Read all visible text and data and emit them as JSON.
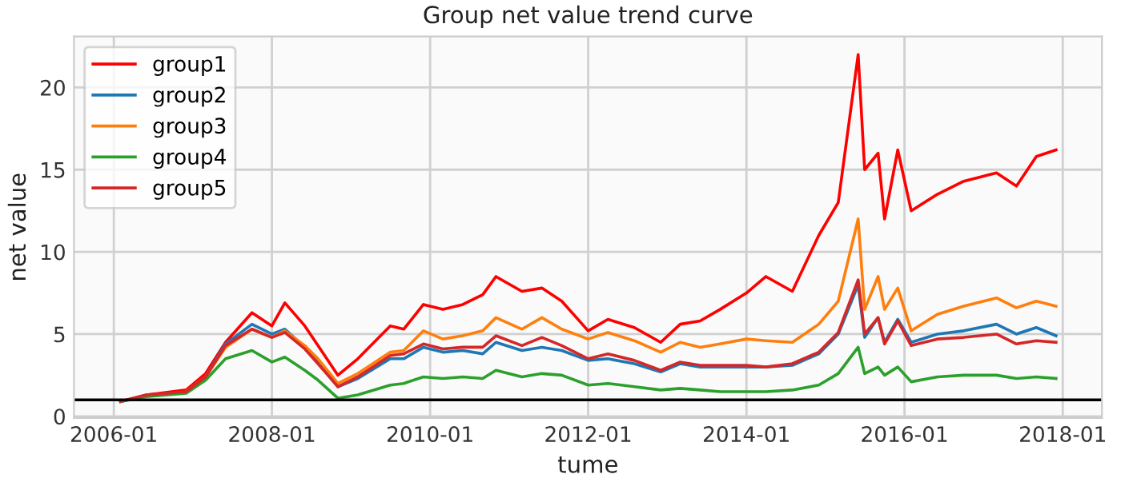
{
  "chart_data": {
    "type": "line",
    "title": "Group net value trend curve",
    "xlabel": "tume",
    "ylabel": "net value",
    "x": [
      "2006-02",
      "2006-06",
      "2006-12",
      "2007-03",
      "2007-06",
      "2007-10",
      "2008-01",
      "2008-03",
      "2008-06",
      "2008-08",
      "2008-11",
      "2009-02",
      "2009-07",
      "2009-09",
      "2009-12",
      "2010-03",
      "2010-06",
      "2010-09",
      "2010-11",
      "2011-03",
      "2011-06",
      "2011-09",
      "2012-01",
      "2012-04",
      "2012-08",
      "2012-12",
      "2013-03",
      "2013-06",
      "2013-09",
      "2014-01",
      "2014-04",
      "2014-08",
      "2014-12",
      "2015-03",
      "2015-06",
      "2015-07",
      "2015-09",
      "2015-10",
      "2015-12",
      "2016-02",
      "2016-06",
      "2016-10",
      "2017-03",
      "2017-06",
      "2017-09",
      "2017-12"
    ],
    "series": [
      {
        "name": "group1",
        "color": "#ff0000",
        "values": [
          0.9,
          1.3,
          1.6,
          2.6,
          4.5,
          6.3,
          5.5,
          6.9,
          5.5,
          4.3,
          2.5,
          3.5,
          5.5,
          5.3,
          6.8,
          6.5,
          6.8,
          7.4,
          8.5,
          7.6,
          7.8,
          7.0,
          5.2,
          5.9,
          5.4,
          4.5,
          5.6,
          5.8,
          6.5,
          7.5,
          8.5,
          7.6,
          11,
          13,
          22,
          15,
          16,
          12,
          16.2,
          12.5,
          13.5,
          14.3,
          14.8,
          14.0,
          15.8,
          16.2
        ]
      },
      {
        "name": "group2",
        "color": "#1f77b4",
        "values": [
          null,
          null,
          null,
          2.4,
          4.4,
          5.6,
          5.0,
          5.3,
          4.2,
          3.3,
          1.8,
          2.3,
          3.5,
          3.5,
          4.2,
          3.9,
          4.0,
          3.8,
          4.5,
          4.0,
          4.2,
          4.0,
          3.4,
          3.5,
          3.2,
          2.7,
          3.2,
          3.0,
          3.0,
          3.0,
          3.0,
          3.1,
          3.8,
          5.0,
          8.0,
          4.8,
          6.0,
          4.5,
          5.9,
          4.5,
          5.0,
          5.2,
          5.6,
          5.0,
          5.4,
          4.9
        ]
      },
      {
        "name": "group3",
        "color": "#ff7f0e",
        "values": [
          null,
          null,
          1.5,
          2.4,
          4.2,
          5.3,
          4.8,
          5.2,
          4.3,
          3.5,
          2.0,
          2.6,
          3.9,
          4.0,
          5.2,
          4.7,
          4.9,
          5.2,
          6.0,
          5.3,
          6.0,
          5.3,
          4.7,
          5.1,
          4.6,
          3.9,
          4.5,
          4.2,
          4.4,
          4.7,
          4.6,
          4.5,
          5.6,
          7.0,
          12,
          6.5,
          8.5,
          6.5,
          7.8,
          5.2,
          6.2,
          6.7,
          7.2,
          6.6,
          7.0,
          6.7
        ]
      },
      {
        "name": "group4",
        "color": "#2ca02c",
        "values": [
          0.9,
          1.2,
          1.4,
          2.2,
          3.5,
          4.0,
          3.3,
          3.6,
          2.8,
          2.2,
          1.1,
          1.3,
          1.9,
          2.0,
          2.4,
          2.3,
          2.4,
          2.3,
          2.8,
          2.4,
          2.6,
          2.5,
          1.9,
          2.0,
          1.8,
          1.6,
          1.7,
          1.6,
          1.5,
          1.5,
          1.5,
          1.6,
          1.9,
          2.6,
          4.2,
          2.6,
          3.0,
          2.5,
          3.0,
          2.1,
          2.4,
          2.5,
          2.5,
          2.3,
          2.4,
          2.3
        ]
      },
      {
        "name": "group5",
        "color": "#d62728",
        "values": [
          0.9,
          1.3,
          1.5,
          2.4,
          4.3,
          5.3,
          4.8,
          5.1,
          4.1,
          3.2,
          1.8,
          2.4,
          3.7,
          3.8,
          4.4,
          4.1,
          4.2,
          4.2,
          4.9,
          4.3,
          4.8,
          4.3,
          3.5,
          3.8,
          3.4,
          2.8,
          3.3,
          3.1,
          3.1,
          3.1,
          3.0,
          3.2,
          3.9,
          5.1,
          8.3,
          5.0,
          6.0,
          4.4,
          5.8,
          4.3,
          4.7,
          4.8,
          5.0,
          4.4,
          4.6,
          4.5
        ]
      }
    ],
    "xlim": [
      "2005-07",
      "2018-07"
    ],
    "xticks": [
      "2006-01",
      "2008-01",
      "2010-01",
      "2012-01",
      "2014-01",
      "2016-01",
      "2018-01"
    ],
    "ylim": [
      -0.1,
      23.1
    ],
    "yticks": [
      0,
      5,
      10,
      15,
      20
    ],
    "ref_lines": [
      {
        "axis": "y",
        "value": 1,
        "color": "#000000"
      }
    ],
    "grid": true,
    "legend": "top left",
    "marker": "none",
    "line_style": "solid"
  }
}
